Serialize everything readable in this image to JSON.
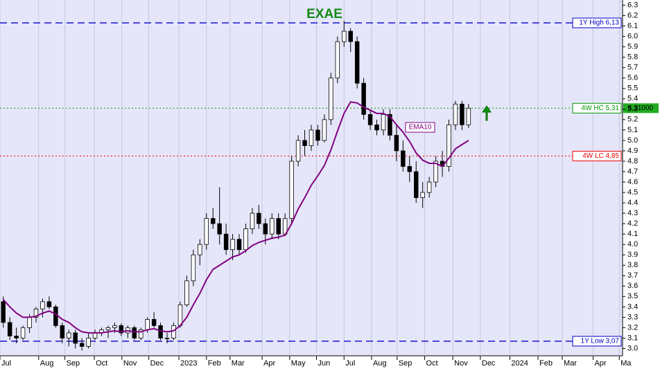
{
  "chart_data": {
    "type": "candlestick",
    "title": "EXAE",
    "x": [
      0.5,
      1.5,
      2.5,
      3.5,
      4.5,
      5.5,
      6.5,
      7.5,
      8.5,
      9.5,
      10.5,
      11.5,
      12.5,
      13.5,
      14.5,
      15.5,
      16.5,
      17.5,
      18.5,
      19.5,
      20.5,
      21.5,
      22.5,
      23.5,
      24.5,
      25.5,
      26.5,
      27.5,
      28.5,
      29.5,
      30.5,
      31.5,
      32.5,
      33.5,
      34.5,
      35.5,
      36.5,
      37.5,
      38.5,
      39.5,
      40.5,
      41.5,
      42.5,
      43.5,
      44.5,
      45.5,
      46.5,
      47.5,
      48.5,
      49.5,
      50.5,
      51.5,
      52.5,
      53.5,
      54.5,
      55.5,
      56.5,
      57.5,
      58.5,
      59.5,
      60.5,
      61.5,
      62.5,
      63.5,
      64.5,
      65.5,
      66.5,
      67.5,
      68.5,
      69.5,
      70.5,
      71.5
    ],
    "open": [
      3.45,
      3.25,
      3.12,
      3.1,
      3.2,
      3.3,
      3.38,
      3.45,
      3.4,
      3.22,
      3.1,
      3.15,
      3.05,
      3.02,
      3.1,
      3.15,
      3.18,
      3.2,
      3.22,
      3.15,
      3.2,
      3.1,
      3.18,
      3.28,
      3.22,
      3.1,
      3.1,
      3.22,
      3.42,
      3.65,
      3.9,
      4.0,
      4.25,
      4.2,
      4.1,
      3.95,
      4.05,
      3.95,
      4.15,
      4.3,
      4.2,
      4.1,
      4.25,
      4.1,
      4.25,
      4.8,
      5.0,
      4.95,
      5.1,
      5.0,
      5.2,
      5.6,
      5.95,
      6.05,
      5.95,
      5.55,
      5.25,
      5.15,
      5.1,
      5.25,
      5.05,
      4.9,
      4.75,
      4.7,
      4.45,
      4.5,
      4.6,
      4.8,
      4.75,
      5.15,
      5.35,
      5.15
    ],
    "high": [
      3.5,
      3.3,
      3.2,
      3.22,
      3.33,
      3.4,
      3.48,
      3.5,
      3.42,
      3.25,
      3.18,
      3.18,
      3.1,
      3.15,
      3.18,
      3.2,
      3.22,
      3.25,
      3.24,
      3.22,
      3.22,
      3.2,
      3.3,
      3.35,
      3.25,
      3.15,
      3.25,
      3.45,
      3.7,
      3.95,
      4.05,
      4.3,
      4.35,
      4.55,
      4.2,
      4.1,
      4.1,
      4.2,
      4.35,
      4.38,
      4.25,
      4.3,
      4.3,
      4.3,
      4.85,
      5.05,
      5.1,
      5.15,
      5.15,
      5.25,
      5.65,
      6.0,
      6.15,
      6.08,
      6.0,
      5.6,
      5.3,
      5.2,
      5.3,
      5.3,
      5.15,
      5.0,
      4.85,
      4.8,
      4.6,
      4.65,
      4.85,
      4.9,
      5.2,
      5.38,
      5.38,
      5.35
    ],
    "low": [
      3.2,
      3.08,
      3.05,
      3.08,
      3.15,
      3.25,
      3.3,
      3.38,
      3.2,
      3.05,
      3.02,
      3.0,
      2.98,
      3.0,
      3.08,
      3.12,
      3.1,
      3.15,
      3.12,
      3.1,
      3.08,
      3.08,
      3.15,
      3.2,
      3.08,
      3.05,
      3.08,
      3.2,
      3.4,
      3.6,
      3.8,
      3.95,
      4.15,
      4.0,
      3.9,
      3.85,
      3.9,
      3.92,
      4.1,
      4.15,
      4.0,
      4.05,
      4.05,
      4.08,
      4.2,
      4.75,
      4.85,
      4.9,
      4.95,
      4.98,
      5.15,
      5.55,
      5.9,
      5.85,
      5.5,
      5.2,
      5.1,
      5.05,
      5.05,
      5.0,
      4.8,
      4.7,
      4.6,
      4.4,
      4.35,
      4.45,
      4.55,
      4.65,
      4.7,
      5.1,
      5.1,
      5.12
    ],
    "close": [
      3.25,
      3.12,
      3.1,
      3.2,
      3.3,
      3.38,
      3.45,
      3.4,
      3.22,
      3.1,
      3.15,
      3.05,
      3.02,
      3.1,
      3.15,
      3.18,
      3.2,
      3.22,
      3.15,
      3.2,
      3.1,
      3.18,
      3.28,
      3.22,
      3.1,
      3.1,
      3.22,
      3.42,
      3.65,
      3.9,
      4.0,
      4.25,
      4.2,
      4.1,
      3.95,
      4.05,
      3.95,
      4.15,
      4.3,
      4.2,
      4.1,
      4.25,
      4.1,
      4.25,
      4.8,
      5.0,
      4.95,
      5.1,
      5.0,
      5.2,
      5.6,
      5.95,
      6.05,
      5.95,
      5.55,
      5.25,
      5.15,
      5.1,
      5.25,
      5.05,
      4.9,
      4.75,
      4.7,
      4.45,
      4.5,
      4.6,
      4.8,
      4.75,
      5.15,
      5.35,
      5.15,
      5.31
    ],
    "ema": {
      "name": "EMA10",
      "color": "#800080",
      "values": [
        3.47,
        3.4,
        3.34,
        3.3,
        3.3,
        3.31,
        3.34,
        3.36,
        3.33,
        3.28,
        3.25,
        3.2,
        3.16,
        3.15,
        3.15,
        3.15,
        3.16,
        3.17,
        3.16,
        3.17,
        3.16,
        3.16,
        3.18,
        3.19,
        3.17,
        3.16,
        3.17,
        3.22,
        3.3,
        3.42,
        3.53,
        3.66,
        3.76,
        3.8,
        3.84,
        3.88,
        3.9,
        3.94,
        3.99,
        4.02,
        4.04,
        4.06,
        4.07,
        4.09,
        4.2,
        4.34,
        4.45,
        4.57,
        4.66,
        4.76,
        4.91,
        5.09,
        5.26,
        5.37,
        5.36,
        5.32,
        5.29,
        5.26,
        5.26,
        5.23,
        5.15,
        5.08,
        4.99,
        4.88,
        4.81,
        4.78,
        4.78,
        4.75,
        4.83,
        4.92,
        4.96,
        5.0
      ]
    },
    "levels": [
      {
        "label": "1Y High 6,13",
        "value": 6.13,
        "color": "#0000cc",
        "style": "dashed"
      },
      {
        "label": "4W HC 5,31",
        "value": 5.31,
        "color": "#009900",
        "style": "dotted"
      },
      {
        "label": "4W LC 4,85",
        "value": 4.85,
        "color": "#ee0000",
        "style": "dotted"
      },
      {
        "label": "1Y Low 3,07",
        "value": 3.07,
        "color": "#0000cc",
        "style": "dashed"
      }
    ],
    "last_price": {
      "value": 5.31,
      "label": "5,31000"
    },
    "xlim": [
      0,
      95
    ],
    "xticks": [
      {
        "value": 0,
        "label": "Jul"
      },
      {
        "value": 5.9,
        "label": "Aug"
      },
      {
        "value": 9.9,
        "label": "Sep"
      },
      {
        "value": 14.4,
        "label": "Oct"
      },
      {
        "value": 18.6,
        "label": "Nov"
      },
      {
        "value": 22.7,
        "label": "Dec"
      },
      {
        "value": 27.3,
        "label": "2023"
      },
      {
        "value": 31.5,
        "label": "Feb"
      },
      {
        "value": 35.1,
        "label": "Mar"
      },
      {
        "value": 40,
        "label": "Apr"
      },
      {
        "value": 44.2,
        "label": "May"
      },
      {
        "value": 48.3,
        "label": "Jun"
      },
      {
        "value": 52.5,
        "label": "Jul"
      },
      {
        "value": 56.7,
        "label": "Aug"
      },
      {
        "value": 60.6,
        "label": "Sep"
      },
      {
        "value": 64.8,
        "label": "Oct"
      },
      {
        "value": 69.1,
        "label": "Nov"
      },
      {
        "value": 73.3,
        "label": "Dec"
      },
      {
        "value": 77.8,
        "label": "2024"
      },
      {
        "value": 82.1,
        "label": "Feb"
      },
      {
        "value": 85.8,
        "label": "Mar"
      },
      {
        "value": 90.5,
        "label": "Apr"
      },
      {
        "value": 94.5,
        "label": "Ma"
      }
    ],
    "ylim": [
      2.89,
      6.35
    ],
    "yticks": [
      6.3,
      6.2,
      6.1,
      {
        "value": 6,
        "label": "6.0"
      },
      5.9,
      5.8,
      5.7,
      5.6,
      5.5,
      5.4,
      5.3,
      5.2,
      5.1,
      {
        "value": 5,
        "label": "5.0"
      },
      4.9,
      4.8,
      4.7,
      4.6,
      4.5,
      4.4,
      4.3,
      4.2,
      4.1,
      {
        "value": 4,
        "label": "4.0"
      },
      3.9,
      3.8,
      3.7,
      3.6,
      3.5,
      3.4,
      3.3,
      3.2,
      3.1,
      {
        "value": 3,
        "label": "3.0"
      }
    ],
    "grid": true
  }
}
